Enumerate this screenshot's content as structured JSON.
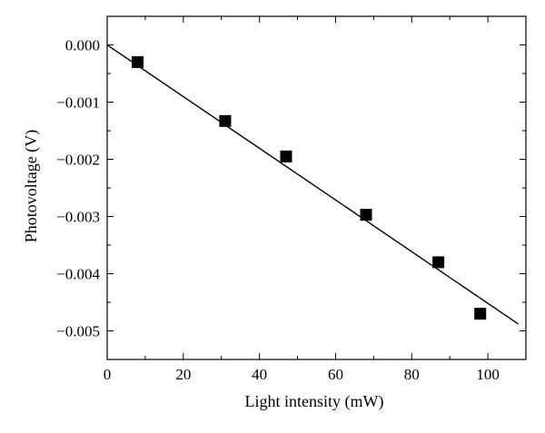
{
  "chart_data": {
    "type": "scatter",
    "xlabel": "Light intensity (mW)",
    "ylabel": "Photovoltage (V)",
    "xlim": [
      0,
      110
    ],
    "ylim": [
      -0.0055,
      0.0005
    ],
    "x_ticks": [
      0,
      20,
      40,
      60,
      80,
      100
    ],
    "x_tick_labels": [
      "0",
      "20",
      "40",
      "60",
      "80",
      "100"
    ],
    "y_ticks": [
      0.0,
      -0.001,
      -0.002,
      -0.003,
      -0.004,
      -0.005
    ],
    "y_tick_labels": [
      "0.000",
      "−0.001",
      "−0.002",
      "−0.003",
      "−0.004",
      "−0.005"
    ],
    "grid": false,
    "series": [
      {
        "marker": "square",
        "color": "#000000",
        "x": [
          8,
          31,
          47,
          68,
          87,
          98
        ],
        "y": [
          -0.0003,
          -0.00133,
          -0.00195,
          -0.00297,
          -0.0038,
          -0.0047
        ]
      }
    ],
    "fit_line": {
      "x": [
        0,
        108
      ],
      "y": [
        0.0,
        -0.00488
      ],
      "color": "#000000"
    }
  }
}
